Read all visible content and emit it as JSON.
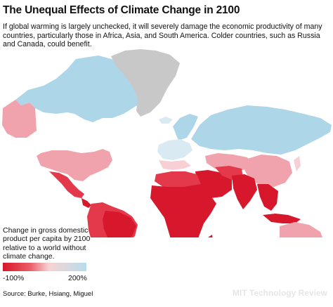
{
  "title": "The Unequal Effects of Climate Change in 2100",
  "subtitle": "If global warming is largely unchecked, it will severely damage the economic productivity of many countries, particularly those in Africa, Asia, and South America. Colder countries, such as Russia and Canada, could benefit.",
  "legend": {
    "description": "Change in gross domestic product per capita by 2100 relative to a world without climate change.",
    "min_label": "-100%",
    "max_label": "200%",
    "colors": [
      "#d7172c",
      "#ea5f68",
      "#f7d3d3",
      "#b8dceb"
    ]
  },
  "source": "Source: Burke, Hsiang, Miguel",
  "brand": "MIT Technology Review",
  "colors": {
    "severe_loss": "#d7172c",
    "strong_loss": "#e3394a",
    "moderate_loss": "#f0a3ad",
    "slight_loss": "#f8cfd5",
    "slight_gain": "#d9eaf2",
    "gain": "#add6e8",
    "no_data": "#c8c8c8"
  }
}
